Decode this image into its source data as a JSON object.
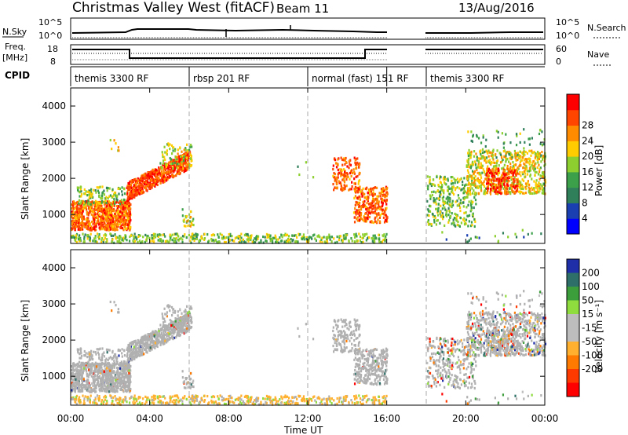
{
  "header": {
    "title": "Christmas Valley West (fitACF)",
    "beam": "Beam 11",
    "date": "13/Aug/2016"
  },
  "panel_labels": {
    "nsky": "N.Sky",
    "nsky_tick_top": "10^5",
    "nsky_tick_bottom": "10^0",
    "nsearch": "N.Search",
    "nsearch_tick_top": "10^5",
    "nsearch_tick_bottom": "10^0",
    "freq_line1": "Freq.",
    "freq_line2": "[MHz]",
    "freq_tick_top": "18",
    "freq_tick_bottom": "8",
    "nave": "Nave",
    "nave_tick_top": "60",
    "nave_tick_bottom": "0",
    "cpid": "CPID"
  },
  "cpid_segments": [
    {
      "label": "themis 3300 RF",
      "start_h": 0,
      "end_h": 6
    },
    {
      "label": "rbsp 201 RF",
      "start_h": 6,
      "end_h": 12
    },
    {
      "label": "normal (fast) 151 RF",
      "start_h": 12,
      "end_h": 16
    },
    {
      "label": "themis 3300 RF",
      "start_h": 18,
      "end_h": 24
    }
  ],
  "chart_data": [
    {
      "type": "heatmap",
      "name": "Power",
      "ylabel": "Slant Range [km]",
      "xlabel": "Time UT",
      "xlim": [
        0,
        24
      ],
      "ylim": [
        200,
        4500
      ],
      "yticks": [
        1000,
        2000,
        3000,
        4000
      ],
      "xticks": [
        "00:00",
        "04:00",
        "08:00",
        "12:00",
        "16:00",
        "20:00",
        "00:00"
      ],
      "grid_lines_h": [
        6,
        12,
        18
      ],
      "colorbar_label": "Power [dB]",
      "colorbar_ticks": [
        "4",
        "8",
        "12",
        "16",
        "20",
        "24",
        "28"
      ],
      "colorbar_range": [
        0,
        30
      ],
      "data_gap_h": [
        16,
        18
      ]
    },
    {
      "type": "heatmap",
      "name": "Velocity",
      "ylabel": "Slant Range [km]",
      "xlabel": "Time UT",
      "xlim": [
        0,
        24
      ],
      "ylim": [
        200,
        4500
      ],
      "yticks": [
        1000,
        2000,
        3000,
        4000
      ],
      "xticks": [
        "00:00",
        "04:00",
        "08:00",
        "12:00",
        "16:00",
        "20:00",
        "00:00"
      ],
      "colorbar_label": "Velocity [m s⁻¹]",
      "colorbar_ticks": [
        "200",
        "100",
        "50",
        "15",
        "-15",
        "-50",
        "-100",
        "-200"
      ],
      "data_gap_h": [
        16,
        18
      ]
    }
  ],
  "colors": {
    "power_scale": [
      "#0000ff",
      "#1a3fb0",
      "#2e7f5a",
      "#3ca04a",
      "#8ccf2e",
      "#ffcc00",
      "#ff8c00",
      "#ff4500",
      "#ff0000"
    ],
    "velocity_scale": [
      "#1e2fa8",
      "#2e6f6a",
      "#3c9e3a",
      "#8fdc3f",
      "#bdbdbd",
      "#bdbdbd",
      "#ffb02e",
      "#ff7a00",
      "#ff3a00",
      "#ff0000"
    ],
    "ground_scatter": "#b0b0b0"
  }
}
